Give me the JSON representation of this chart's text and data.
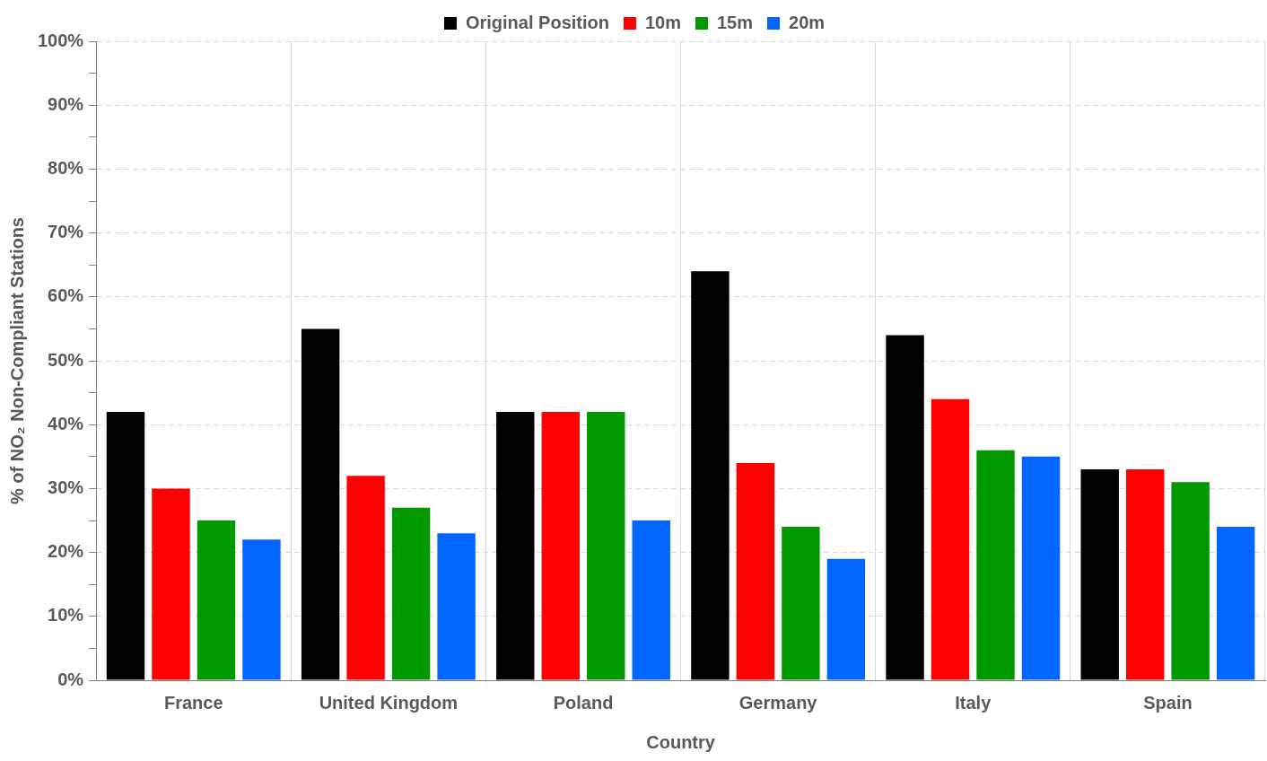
{
  "chart_data": {
    "type": "bar",
    "xlabel": "Country",
    "ylabel": "% of NO₂ Non-Compliant Stations",
    "categories": [
      "France",
      "United Kingdom",
      "Poland",
      "Germany",
      "Italy",
      "Spain"
    ],
    "series": [
      {
        "name": "Original Position",
        "color": "#000000",
        "values": [
          42,
          55,
          42,
          64,
          54,
          33
        ]
      },
      {
        "name": "10m",
        "color": "#ff0000",
        "values": [
          30,
          32,
          42,
          34,
          44,
          33
        ]
      },
      {
        "name": "15m",
        "color": "#009900",
        "values": [
          25,
          27,
          42,
          24,
          36,
          31
        ]
      },
      {
        "name": "20m",
        "color": "#0066ff",
        "values": [
          22,
          23,
          25,
          19,
          35,
          24
        ]
      }
    ],
    "ylim": [
      0,
      100
    ],
    "yticks": [
      {
        "value": 0,
        "label": "0%"
      },
      {
        "value": 5,
        "label": null
      },
      {
        "value": 10,
        "label": "10%"
      },
      {
        "value": 15,
        "label": null
      },
      {
        "value": 20,
        "label": "20%"
      },
      {
        "value": 25,
        "label": null
      },
      {
        "value": 30,
        "label": "30%"
      },
      {
        "value": 35,
        "label": null
      },
      {
        "value": 40,
        "label": "40%"
      },
      {
        "value": 45,
        "label": null
      },
      {
        "value": 50,
        "label": "50%"
      },
      {
        "value": 55,
        "label": null
      },
      {
        "value": 60,
        "label": "60%"
      },
      {
        "value": 65,
        "label": null
      },
      {
        "value": 70,
        "label": "70%"
      },
      {
        "value": 75,
        "label": null
      },
      {
        "value": 80,
        "label": "80%"
      },
      {
        "value": 85,
        "label": null
      },
      {
        "value": 90,
        "label": "90%"
      },
      {
        "value": 95,
        "label": null
      },
      {
        "value": 100,
        "label": "100%"
      }
    ],
    "grid": true,
    "legend": "top"
  }
}
